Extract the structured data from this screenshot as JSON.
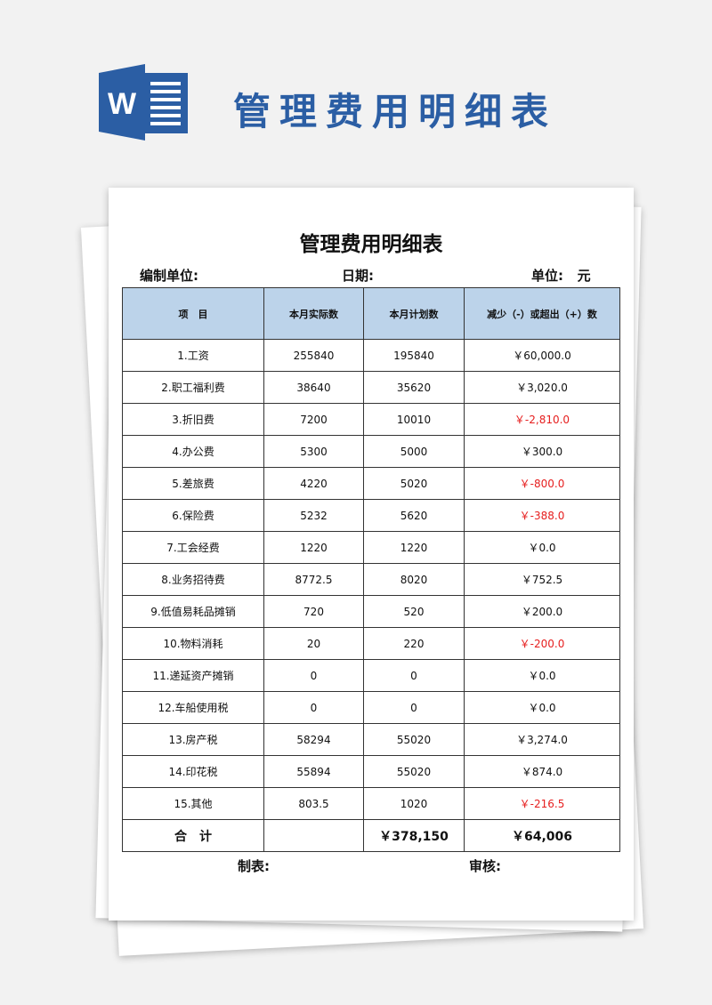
{
  "banner": {
    "title": "管理费用明细表",
    "logo_letter": "W"
  },
  "doc": {
    "title": "管理费用明细表",
    "compiler_label": "编制单位:",
    "date_label": "日期:",
    "unit_label": "单位:",
    "unit_value": "元",
    "headers": [
      "项　目",
      "本月实际数",
      "本月计划数",
      "减少（-）或超出（+）数"
    ],
    "rows": [
      [
        "1.工资",
        "255840",
        "195840",
        "￥60,000.0",
        false
      ],
      [
        "2.职工福利费",
        "38640",
        "35620",
        "￥3,020.0",
        false
      ],
      [
        "3.折旧费",
        "7200",
        "10010",
        "￥-2,810.0",
        true
      ],
      [
        "4.办公费",
        "5300",
        "5000",
        "￥300.0",
        false
      ],
      [
        "5.差旅费",
        "4220",
        "5020",
        "￥-800.0",
        true
      ],
      [
        "6.保险费",
        "5232",
        "5620",
        "￥-388.0",
        true
      ],
      [
        "7.工会经费",
        "1220",
        "1220",
        "￥0.0",
        false
      ],
      [
        "8.业务招待费",
        "8772.5",
        "8020",
        "￥752.5",
        false
      ],
      [
        "9.低值易耗品摊销",
        "720",
        "520",
        "￥200.0",
        false
      ],
      [
        "10.物料消耗",
        "20",
        "220",
        "￥-200.0",
        true
      ],
      [
        "11.递延资产摊销",
        "0",
        "0",
        "￥0.0",
        false
      ],
      [
        "12.车船使用税",
        "0",
        "0",
        "￥0.0",
        false
      ],
      [
        "13.房产税",
        "58294",
        "55020",
        "￥3,274.0",
        false
      ],
      [
        "14.印花税",
        "55894",
        "55020",
        "￥874.0",
        false
      ],
      [
        "15.其他",
        "803.5",
        "1020",
        "￥-216.5",
        true
      ]
    ],
    "total": {
      "label": "合　计",
      "actual": "",
      "plan": "￥378,150",
      "diff": "￥64,006"
    },
    "prepared_label": "制表:",
    "review_label": "审核:"
  },
  "colors": {
    "brand": "#2b5ea4",
    "header_bg": "#bcd3ea",
    "negative": "#e61e1e"
  }
}
